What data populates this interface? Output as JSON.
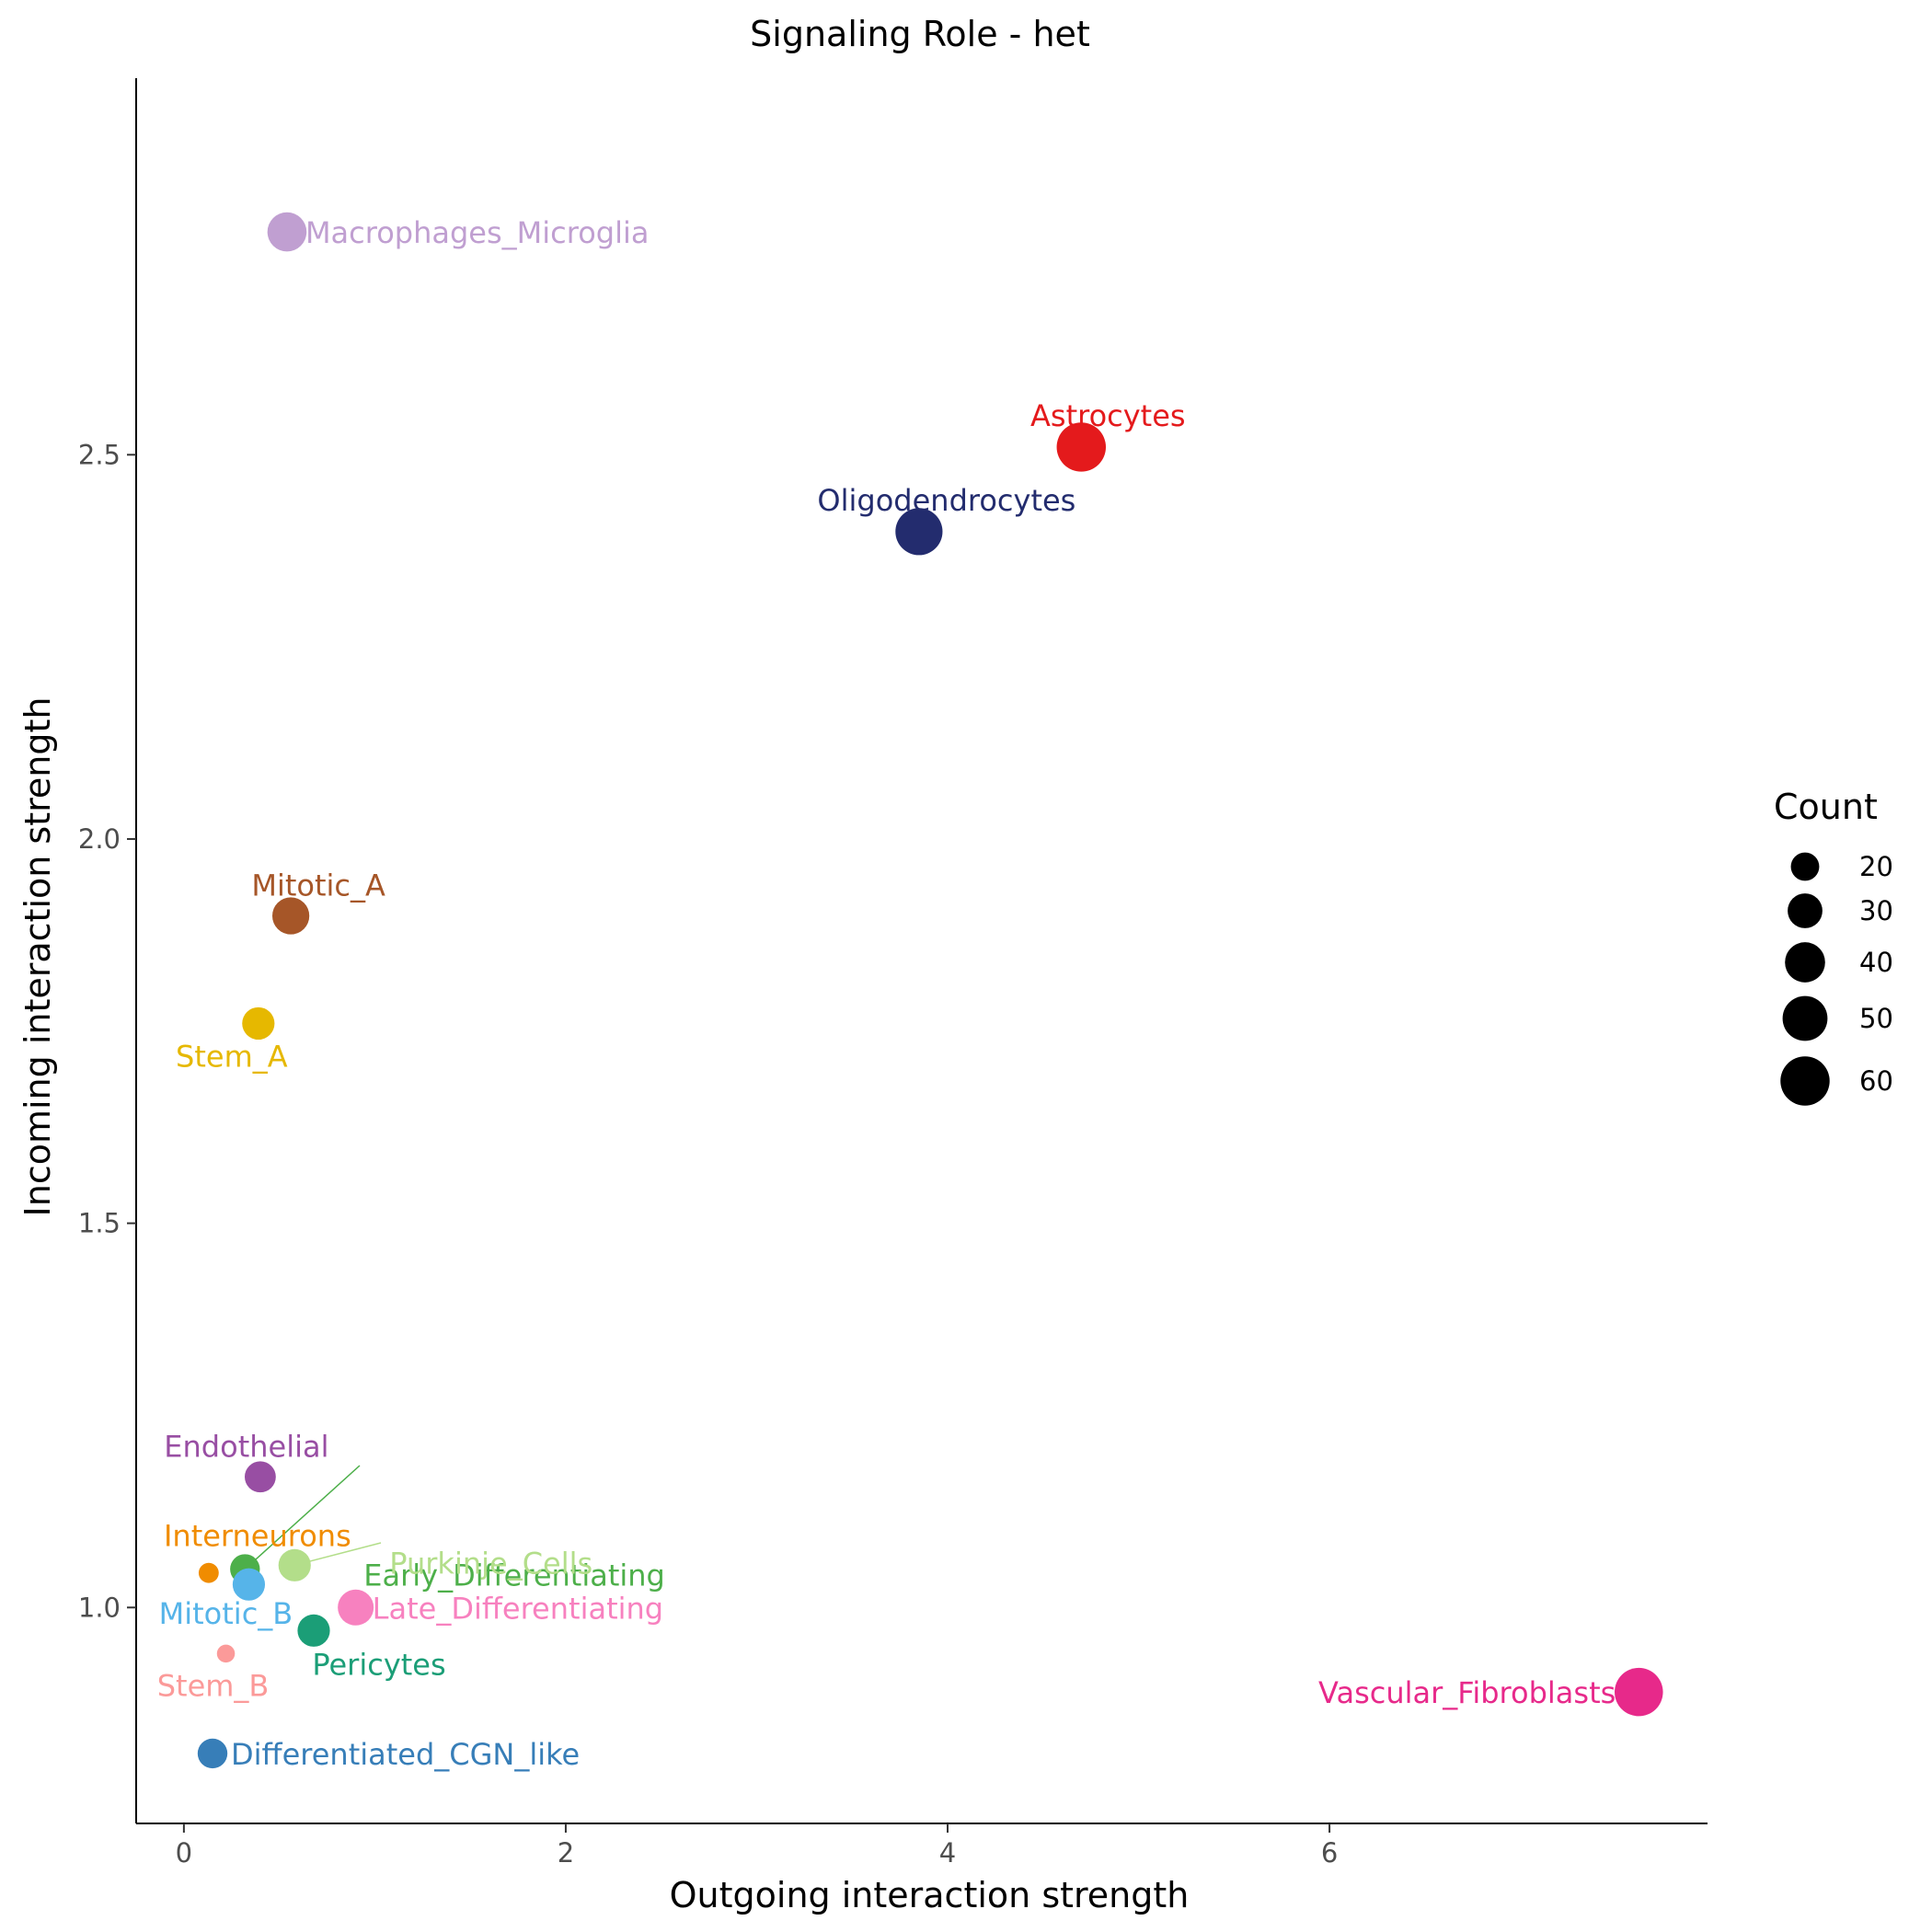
{
  "chart_data": {
    "type": "scatter",
    "title": "Signaling Role - het",
    "xlabel": "Outgoing interaction strength",
    "ylabel": "Incoming interaction strength",
    "xlim": [
      -0.25,
      7.98
    ],
    "ylim": [
      0.719,
      2.99
    ],
    "x_ticks": [
      0,
      2,
      4,
      6
    ],
    "y_ticks": [
      1.0,
      1.5,
      2.0,
      2.5
    ],
    "y_tick_labels": [
      "1.0",
      "1.5",
      "2.0",
      "2.5"
    ],
    "grid": false,
    "size_legend": {
      "title": "Count",
      "placement": "right",
      "entries": [
        {
          "label": "20",
          "value": 20
        },
        {
          "label": "30",
          "value": 30
        },
        {
          "label": "40",
          "value": 40
        },
        {
          "label": "50",
          "value": 50
        },
        {
          "label": "60",
          "value": 60
        }
      ]
    },
    "points": [
      {
        "name": "Macrophages_Microglia",
        "x": 0.54,
        "y": 2.79,
        "count": 38,
        "color": "#C09FD1"
      },
      {
        "name": "Astrocytes",
        "x": 4.7,
        "y": 2.51,
        "count": 60,
        "color": "#E41A1C"
      },
      {
        "name": "Oligodendrocytes",
        "x": 3.85,
        "y": 2.4,
        "count": 55,
        "color": "#232C6E"
      },
      {
        "name": "Mitotic_A",
        "x": 0.56,
        "y": 1.9,
        "count": 34,
        "color": "#A65628"
      },
      {
        "name": "Stem_A",
        "x": 0.39,
        "y": 1.76,
        "count": 26,
        "color": "#E6B800"
      },
      {
        "name": "Endothelial",
        "x": 0.4,
        "y": 1.17,
        "count": 24,
        "color": "#984EA3"
      },
      {
        "name": "Early_Differentiating",
        "x": 0.32,
        "y": 1.05,
        "count": 22,
        "color": "#4DAF4A"
      },
      {
        "name": "Interneurons",
        "x": 0.13,
        "y": 1.045,
        "count": 10,
        "color": "#F08C00"
      },
      {
        "name": "Purkinje_Cells",
        "x": 0.58,
        "y": 1.055,
        "count": 26,
        "color": "#B3DE8A"
      },
      {
        "name": "Mitotic_B",
        "x": 0.34,
        "y": 1.03,
        "count": 26,
        "color": "#56B4E9"
      },
      {
        "name": "Late_Differentiating",
        "x": 0.9,
        "y": 1.0,
        "count": 32,
        "color": "#F781BF"
      },
      {
        "name": "Pericytes",
        "x": 0.68,
        "y": 0.97,
        "count": 26,
        "color": "#1B9E77"
      },
      {
        "name": "Stem_B",
        "x": 0.22,
        "y": 0.94,
        "count": 8,
        "color": "#FB9A99"
      },
      {
        "name": "Vascular_Fibroblasts",
        "x": 7.62,
        "y": 0.89,
        "count": 58,
        "color": "#E7298A"
      },
      {
        "name": "Differentiated_CGN_like",
        "x": 0.15,
        "y": 0.81,
        "count": 22,
        "color": "#377EB8"
      }
    ]
  }
}
